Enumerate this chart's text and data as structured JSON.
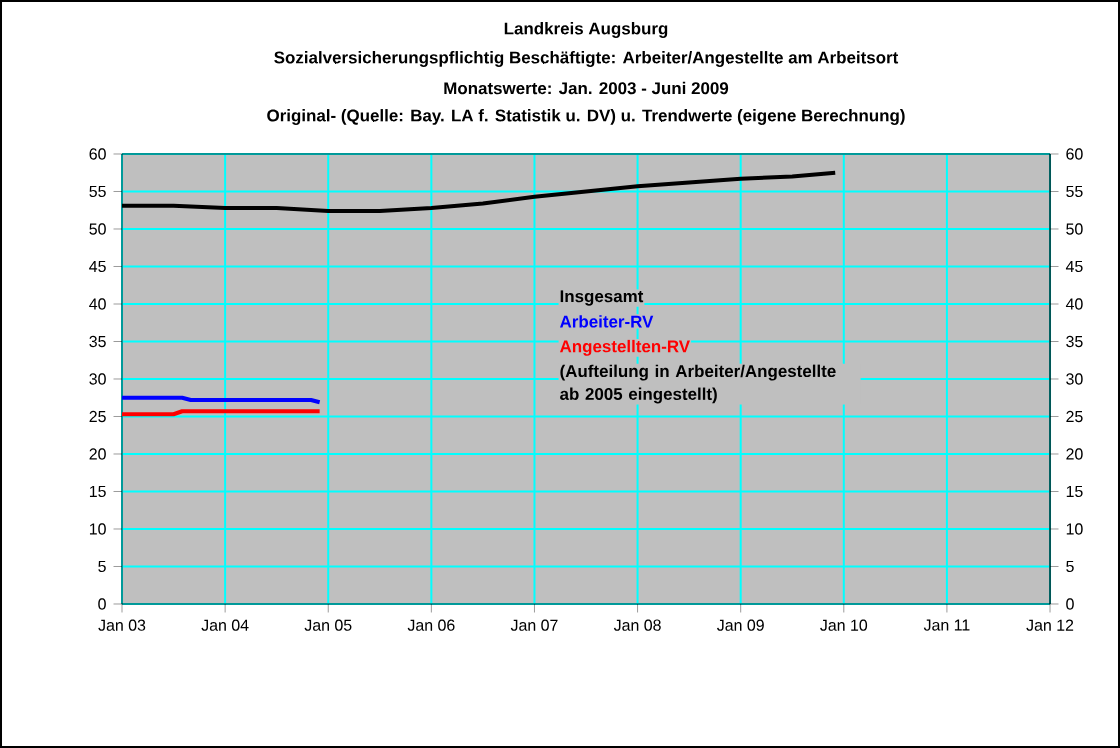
{
  "chart_data": {
    "type": "line",
    "title": "Landkreis Augsburg",
    "subtitle": "Sozialversicherungspflichtig Beschäftigte: Arbeiter/Angestellte am Arbeitsort",
    "annotations": [
      "Monatswerte: Jan. 2003 - Juni 2009",
      "Original- (Quelle: Bay. LA f. Statistik u. DV) u. Trendwerte (eigene Berechnung)",
      "(Aufteilung in  Arbeiter/Angestellte ab 2005 eingestellt)"
    ],
    "series": [
      {
        "name": "Insgesamt",
        "color": "#000000",
        "x": [
          "2003-01",
          "2003-07",
          "2004-01",
          "2004-07",
          "2005-01",
          "2005-07",
          "2006-01",
          "2006-07",
          "2007-01",
          "2007-07",
          "2008-01",
          "2008-07",
          "2009-01",
          "2009-07",
          "2009-12"
        ],
        "values": [
          53.1,
          53.1,
          52.8,
          52.8,
          52.4,
          52.4,
          52.8,
          53.4,
          54.3,
          55.0,
          55.7,
          56.2,
          56.7,
          57.0,
          57.5
        ]
      },
      {
        "name": "Arbeiter-RV",
        "color": "#0000ff",
        "x": [
          "2003-01",
          "2003-08",
          "2003-09",
          "2004-11",
          "2004-12"
        ],
        "values": [
          27.5,
          27.5,
          27.2,
          27.2,
          26.9
        ]
      },
      {
        "name": "Angestellten-RV",
        "color": "#ff0000",
        "x": [
          "2003-01",
          "2003-07",
          "2003-08",
          "2004-12"
        ],
        "values": [
          25.3,
          25.3,
          25.7,
          25.7
        ]
      }
    ],
    "xlim": [
      "2003-01",
      "2012-01"
    ],
    "xticks": [
      {
        "value": "2003-01",
        "label": "Jan 03"
      },
      {
        "value": "2004-01",
        "label": "Jan 04"
      },
      {
        "value": "2005-01",
        "label": "Jan 05"
      },
      {
        "value": "2006-01",
        "label": "Jan 06"
      },
      {
        "value": "2007-01",
        "label": "Jan 07"
      },
      {
        "value": "2008-01",
        "label": "Jan 08"
      },
      {
        "value": "2009-01",
        "label": "Jan 09"
      },
      {
        "value": "2010-01",
        "label": "Jan 10"
      },
      {
        "value": "2011-01",
        "label": "Jan 11"
      },
      {
        "value": "2012-01",
        "label": "Jan 12"
      }
    ],
    "ylim": [
      0,
      60
    ],
    "yticks": [
      0,
      5,
      10,
      15,
      20,
      25,
      30,
      35,
      40,
      45,
      50,
      55,
      60
    ],
    "y2lim": [
      0,
      60
    ],
    "y2ticks": [
      0,
      5,
      10,
      15,
      20,
      25,
      30,
      35,
      40,
      45,
      50,
      55,
      60
    ],
    "grid": true,
    "legend": "center",
    "marker": "none",
    "line_style": "solid"
  }
}
